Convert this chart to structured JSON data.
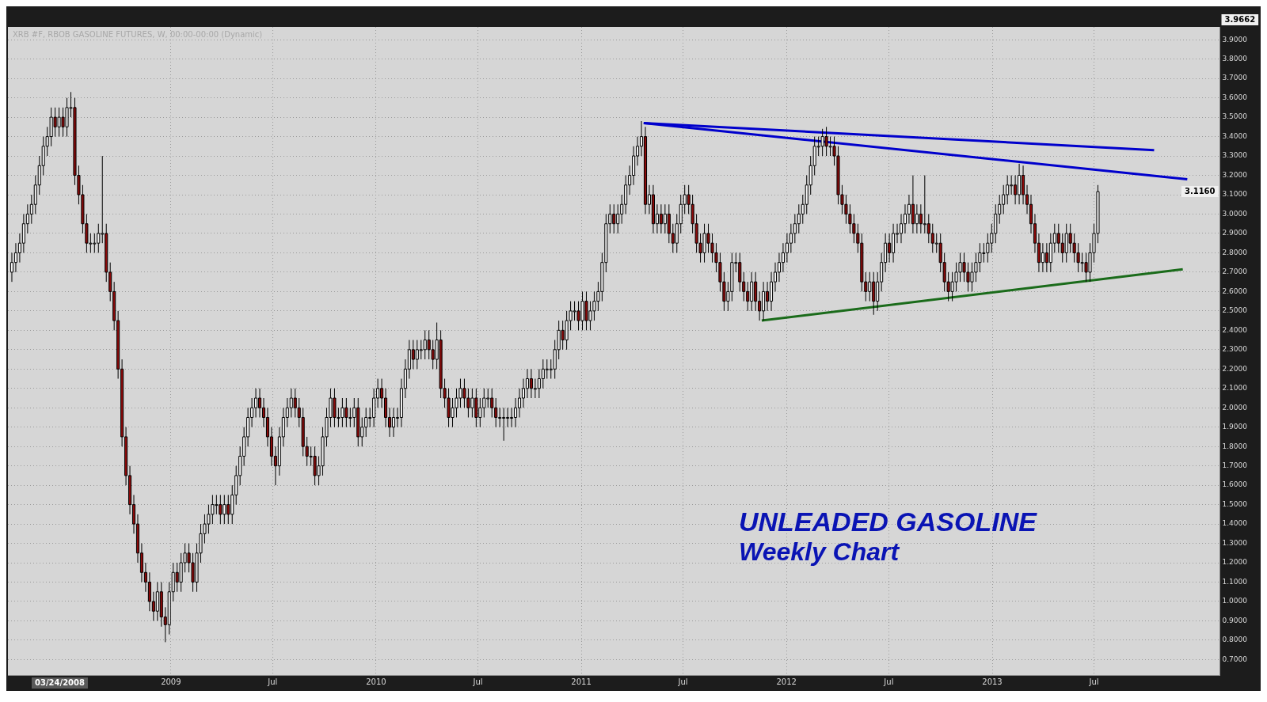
{
  "chart_data": {
    "type": "candlestick",
    "title": "UNLEADED GASOLINE",
    "subtitle": "Weekly Chart",
    "x": [
      "2008-03-24",
      "2008-03-31",
      "2008-04-07",
      "2008-04-14",
      "2008-04-21",
      "2008-04-28",
      "2008-05-05",
      "2008-05-12",
      "2008-05-19",
      "2008-05-26",
      "2008-06-02",
      "2008-06-09",
      "2008-06-16",
      "2008-06-23",
      "2008-06-30",
      "2008-07-07",
      "2008-07-14",
      "2008-07-21",
      "2008-07-28",
      "2008-08-04",
      "2008-08-11",
      "2008-08-18",
      "2008-08-25",
      "2008-09-01",
      "2008-09-08",
      "2008-09-15",
      "2008-09-22",
      "2008-09-29",
      "2008-10-06",
      "2008-10-13",
      "2008-10-20",
      "2008-10-27",
      "2008-11-03",
      "2008-11-10",
      "2008-11-17",
      "2008-11-24",
      "2008-12-01",
      "2008-12-08",
      "2008-12-15",
      "2008-12-22",
      "2008-12-29",
      "2009-01-05",
      "2009-01-12",
      "2009-01-19",
      "2009-01-26",
      "2009-02-02",
      "2009-02-09",
      "2009-02-16",
      "2009-02-23",
      "2009-03-02",
      "2009-03-09",
      "2009-03-16",
      "2009-03-23",
      "2009-03-30",
      "2009-04-06",
      "2009-04-13",
      "2009-04-20",
      "2009-04-27",
      "2009-05-04",
      "2009-05-11",
      "2009-05-18",
      "2009-05-25",
      "2009-06-01",
      "2009-06-08",
      "2009-06-15",
      "2009-06-22",
      "2009-06-29",
      "2009-07-06",
      "2009-07-13",
      "2009-07-20",
      "2009-07-27",
      "2009-08-03",
      "2009-08-10",
      "2009-08-17",
      "2009-08-24",
      "2009-08-31",
      "2009-09-07",
      "2009-09-14",
      "2009-09-21",
      "2009-09-28",
      "2009-10-05",
      "2009-10-12",
      "2009-10-19",
      "2009-10-26",
      "2009-11-02",
      "2009-11-09",
      "2009-11-16",
      "2009-11-23",
      "2009-11-30",
      "2009-12-07",
      "2009-12-14",
      "2009-12-21",
      "2009-12-28",
      "2010-01-04",
      "2010-01-11",
      "2010-01-18",
      "2010-01-25",
      "2010-02-01",
      "2010-02-08",
      "2010-02-15",
      "2010-02-22",
      "2010-03-01",
      "2010-03-08",
      "2010-03-15",
      "2010-03-22",
      "2010-03-29",
      "2010-04-05",
      "2010-04-12",
      "2010-04-19",
      "2010-04-26",
      "2010-05-03",
      "2010-05-10",
      "2010-05-17",
      "2010-05-24",
      "2010-05-31",
      "2010-06-07",
      "2010-06-14",
      "2010-06-21",
      "2010-06-28",
      "2010-07-05",
      "2010-07-12",
      "2010-07-19",
      "2010-07-26",
      "2010-08-02",
      "2010-08-09",
      "2010-08-16",
      "2010-08-23",
      "2010-08-30",
      "2010-09-06",
      "2010-09-13",
      "2010-09-20",
      "2010-09-27",
      "2010-10-04",
      "2010-10-11",
      "2010-10-18",
      "2010-10-25",
      "2010-11-01",
      "2010-11-08",
      "2010-11-15",
      "2010-11-22",
      "2010-11-29",
      "2010-12-06",
      "2010-12-13",
      "2010-12-20",
      "2010-12-27",
      "2011-01-03",
      "2011-01-10",
      "2011-01-17",
      "2011-01-24",
      "2011-01-31",
      "2011-02-07",
      "2011-02-14",
      "2011-02-21",
      "2011-02-28",
      "2011-03-07",
      "2011-03-14",
      "2011-03-21",
      "2011-03-28",
      "2011-04-04",
      "2011-04-11",
      "2011-04-18",
      "2011-04-25",
      "2011-05-02",
      "2011-05-09",
      "2011-05-16",
      "2011-05-23",
      "2011-05-30",
      "2011-06-06",
      "2011-06-13",
      "2011-06-20",
      "2011-06-27",
      "2011-07-04",
      "2011-07-11",
      "2011-07-18",
      "2011-07-25",
      "2011-08-01",
      "2011-08-08",
      "2011-08-15",
      "2011-08-22",
      "2011-08-29",
      "2011-09-05",
      "2011-09-12",
      "2011-09-19",
      "2011-09-26",
      "2011-10-03",
      "2011-10-10",
      "2011-10-17",
      "2011-10-24",
      "2011-10-31",
      "2011-11-07",
      "2011-11-14",
      "2011-11-21",
      "2011-11-28",
      "2011-12-05",
      "2011-12-12",
      "2011-12-19",
      "2011-12-26",
      "2012-01-02",
      "2012-01-09",
      "2012-01-16",
      "2012-01-23",
      "2012-01-30",
      "2012-02-06",
      "2012-02-13",
      "2012-02-20",
      "2012-02-27",
      "2012-03-05",
      "2012-03-12",
      "2012-03-19",
      "2012-03-26",
      "2012-04-02",
      "2012-04-09",
      "2012-04-16",
      "2012-04-23",
      "2012-04-30",
      "2012-05-07",
      "2012-05-14",
      "2012-05-21",
      "2012-05-28",
      "2012-06-04",
      "2012-06-11",
      "2012-06-18",
      "2012-06-25",
      "2012-07-02",
      "2012-07-09",
      "2012-07-16",
      "2012-07-23",
      "2012-07-30",
      "2012-08-06",
      "2012-08-13",
      "2012-08-20",
      "2012-08-27",
      "2012-09-03",
      "2012-09-10",
      "2012-09-17",
      "2012-09-24",
      "2012-10-01",
      "2012-10-08",
      "2012-10-15",
      "2012-10-22",
      "2012-10-29",
      "2012-11-05",
      "2012-11-12",
      "2012-11-19",
      "2012-11-26",
      "2012-12-03",
      "2012-12-10",
      "2012-12-17",
      "2012-12-24",
      "2012-12-31",
      "2013-01-07",
      "2013-01-14",
      "2013-01-21",
      "2013-01-28",
      "2013-02-04",
      "2013-02-11",
      "2013-02-18",
      "2013-02-25",
      "2013-03-04",
      "2013-03-11",
      "2013-03-18",
      "2013-03-25",
      "2013-04-01",
      "2013-04-08",
      "2013-04-15",
      "2013-04-22",
      "2013-04-29",
      "2013-05-06",
      "2013-05-13",
      "2013-05-20",
      "2013-05-27",
      "2013-06-03",
      "2013-06-10",
      "2013-06-17",
      "2013-06-24",
      "2013-07-01",
      "2013-07-08"
    ],
    "ohlc": [
      [
        2.7,
        2.8,
        2.65,
        2.75
      ],
      [
        2.75,
        2.85,
        2.7,
        2.8
      ],
      [
        2.8,
        2.9,
        2.75,
        2.85
      ],
      [
        2.85,
        3.0,
        2.8,
        2.95
      ],
      [
        2.95,
        3.05,
        2.9,
        3.0
      ],
      [
        3.0,
        3.1,
        2.95,
        3.05
      ],
      [
        3.05,
        3.2,
        3.0,
        3.15
      ],
      [
        3.15,
        3.3,
        3.1,
        3.25
      ],
      [
        3.25,
        3.4,
        3.2,
        3.35
      ],
      [
        3.35,
        3.45,
        3.3,
        3.4
      ],
      [
        3.4,
        3.55,
        3.35,
        3.5
      ],
      [
        3.5,
        3.55,
        3.4,
        3.45
      ],
      [
        3.45,
        3.55,
        3.4,
        3.5
      ],
      [
        3.5,
        3.55,
        3.4,
        3.45
      ],
      [
        3.45,
        3.6,
        3.4,
        3.55
      ],
      [
        3.55,
        3.63,
        3.5,
        3.55
      ],
      [
        3.55,
        3.6,
        3.15,
        3.2
      ],
      [
        3.2,
        3.25,
        3.05,
        3.1
      ],
      [
        3.1,
        3.15,
        2.9,
        2.95
      ],
      [
        2.95,
        3.0,
        2.8,
        2.85
      ],
      [
        2.85,
        2.9,
        2.8,
        2.85
      ],
      [
        2.85,
        2.9,
        2.8,
        2.85
      ],
      [
        2.85,
        2.95,
        2.8,
        2.9
      ],
      [
        2.9,
        3.3,
        2.85,
        2.9
      ],
      [
        2.9,
        2.95,
        2.65,
        2.7
      ],
      [
        2.7,
        2.75,
        2.55,
        2.6
      ],
      [
        2.6,
        2.65,
        2.4,
        2.45
      ],
      [
        2.45,
        2.5,
        2.15,
        2.2
      ],
      [
        2.2,
        2.25,
        1.8,
        1.85
      ],
      [
        1.85,
        1.9,
        1.6,
        1.65
      ],
      [
        1.65,
        1.7,
        1.45,
        1.5
      ],
      [
        1.5,
        1.55,
        1.35,
        1.4
      ],
      [
        1.4,
        1.45,
        1.2,
        1.25
      ],
      [
        1.25,
        1.3,
        1.1,
        1.15
      ],
      [
        1.15,
        1.2,
        1.05,
        1.1
      ],
      [
        1.1,
        1.15,
        0.95,
        1.0
      ],
      [
        1.0,
        1.05,
        0.9,
        0.95
      ],
      [
        0.95,
        1.1,
        0.9,
        1.05
      ],
      [
        1.05,
        1.1,
        0.87,
        0.92
      ],
      [
        0.92,
        0.97,
        0.79,
        0.88
      ],
      [
        0.88,
        1.1,
        0.83,
        1.05
      ],
      [
        1.05,
        1.2,
        1.0,
        1.15
      ],
      [
        1.15,
        1.2,
        1.05,
        1.1
      ],
      [
        1.1,
        1.25,
        1.05,
        1.2
      ],
      [
        1.2,
        1.3,
        1.15,
        1.25
      ],
      [
        1.25,
        1.3,
        1.15,
        1.2
      ],
      [
        1.2,
        1.25,
        1.05,
        1.1
      ],
      [
        1.1,
        1.3,
        1.05,
        1.25
      ],
      [
        1.25,
        1.4,
        1.2,
        1.35
      ],
      [
        1.35,
        1.45,
        1.3,
        1.4
      ],
      [
        1.4,
        1.5,
        1.35,
        1.45
      ],
      [
        1.45,
        1.55,
        1.4,
        1.5
      ],
      [
        1.5,
        1.55,
        1.45,
        1.5
      ],
      [
        1.5,
        1.55,
        1.4,
        1.45
      ],
      [
        1.45,
        1.55,
        1.4,
        1.5
      ],
      [
        1.5,
        1.55,
        1.4,
        1.45
      ],
      [
        1.45,
        1.6,
        1.4,
        1.55
      ],
      [
        1.55,
        1.7,
        1.5,
        1.65
      ],
      [
        1.65,
        1.8,
        1.6,
        1.75
      ],
      [
        1.75,
        1.9,
        1.7,
        1.85
      ],
      [
        1.85,
        2.0,
        1.8,
        1.95
      ],
      [
        1.95,
        2.05,
        1.9,
        2.0
      ],
      [
        2.0,
        2.1,
        1.95,
        2.05
      ],
      [
        2.05,
        2.1,
        1.95,
        2.0
      ],
      [
        2.0,
        2.05,
        1.9,
        1.95
      ],
      [
        1.95,
        2.0,
        1.8,
        1.85
      ],
      [
        1.85,
        1.9,
        1.7,
        1.75
      ],
      [
        1.75,
        1.8,
        1.6,
        1.7
      ],
      [
        1.7,
        1.9,
        1.65,
        1.85
      ],
      [
        1.85,
        2.0,
        1.8,
        1.95
      ],
      [
        1.95,
        2.05,
        1.9,
        2.0
      ],
      [
        2.0,
        2.1,
        1.95,
        2.05
      ],
      [
        2.05,
        2.1,
        1.95,
        2.0
      ],
      [
        2.0,
        2.05,
        1.9,
        1.95
      ],
      [
        1.95,
        2.0,
        1.75,
        1.8
      ],
      [
        1.8,
        1.85,
        1.7,
        1.75
      ],
      [
        1.75,
        1.8,
        1.7,
        1.75
      ],
      [
        1.75,
        1.8,
        1.6,
        1.65
      ],
      [
        1.65,
        1.75,
        1.6,
        1.7
      ],
      [
        1.7,
        1.9,
        1.65,
        1.85
      ],
      [
        1.85,
        2.0,
        1.8,
        1.95
      ],
      [
        1.95,
        2.1,
        1.9,
        2.05
      ],
      [
        2.05,
        2.1,
        1.9,
        1.95
      ],
      [
        1.95,
        2.0,
        1.9,
        1.95
      ],
      [
        1.95,
        2.05,
        1.9,
        2.0
      ],
      [
        2.0,
        2.05,
        1.9,
        1.95
      ],
      [
        1.95,
        2.0,
        1.9,
        1.95
      ],
      [
        1.95,
        2.05,
        1.9,
        2.0
      ],
      [
        2.0,
        2.05,
        1.8,
        1.85
      ],
      [
        1.85,
        1.95,
        1.8,
        1.9
      ],
      [
        1.9,
        2.0,
        1.85,
        1.95
      ],
      [
        1.95,
        2.0,
        1.9,
        1.95
      ],
      [
        1.95,
        2.1,
        1.9,
        2.05
      ],
      [
        2.05,
        2.15,
        2.0,
        2.1
      ],
      [
        2.1,
        2.15,
        2.0,
        2.05
      ],
      [
        2.05,
        2.1,
        1.9,
        1.95
      ],
      [
        1.95,
        2.0,
        1.85,
        1.9
      ],
      [
        1.9,
        2.0,
        1.85,
        1.95
      ],
      [
        1.95,
        2.0,
        1.9,
        1.95
      ],
      [
        1.95,
        2.15,
        1.9,
        2.1
      ],
      [
        2.1,
        2.25,
        2.05,
        2.2
      ],
      [
        2.2,
        2.35,
        2.15,
        2.3
      ],
      [
        2.3,
        2.35,
        2.2,
        2.25
      ],
      [
        2.25,
        2.35,
        2.2,
        2.3
      ],
      [
        2.3,
        2.35,
        2.25,
        2.3
      ],
      [
        2.3,
        2.4,
        2.25,
        2.35
      ],
      [
        2.35,
        2.4,
        2.25,
        2.3
      ],
      [
        2.3,
        2.35,
        2.2,
        2.25
      ],
      [
        2.25,
        2.44,
        2.2,
        2.35
      ],
      [
        2.35,
        2.4,
        2.05,
        2.1
      ],
      [
        2.1,
        2.15,
        2.0,
        2.05
      ],
      [
        2.05,
        2.1,
        1.9,
        1.95
      ],
      [
        1.95,
        2.05,
        1.9,
        2.0
      ],
      [
        2.0,
        2.1,
        1.95,
        2.05
      ],
      [
        2.05,
        2.15,
        2.0,
        2.1
      ],
      [
        2.1,
        2.15,
        2.0,
        2.05
      ],
      [
        2.05,
        2.1,
        1.95,
        2.0
      ],
      [
        2.0,
        2.1,
        1.95,
        2.05
      ],
      [
        2.05,
        2.1,
        1.9,
        1.95
      ],
      [
        1.95,
        2.05,
        1.9,
        2.0
      ],
      [
        2.0,
        2.1,
        1.95,
        2.05
      ],
      [
        2.05,
        2.1,
        2.0,
        2.05
      ],
      [
        2.05,
        2.1,
        1.95,
        2.0
      ],
      [
        2.0,
        2.05,
        1.9,
        1.95
      ],
      [
        1.95,
        2.0,
        1.9,
        1.95
      ],
      [
        1.95,
        2.0,
        1.83,
        1.95
      ],
      [
        1.95,
        2.0,
        1.9,
        1.95
      ],
      [
        1.95,
        2.0,
        1.9,
        1.95
      ],
      [
        1.95,
        2.05,
        1.9,
        2.0
      ],
      [
        2.0,
        2.1,
        1.95,
        2.05
      ],
      [
        2.05,
        2.15,
        2.0,
        2.1
      ],
      [
        2.1,
        2.2,
        2.05,
        2.15
      ],
      [
        2.15,
        2.2,
        2.05,
        2.1
      ],
      [
        2.1,
        2.15,
        2.05,
        2.1
      ],
      [
        2.1,
        2.2,
        2.05,
        2.15
      ],
      [
        2.15,
        2.25,
        2.1,
        2.2
      ],
      [
        2.2,
        2.25,
        2.15,
        2.2
      ],
      [
        2.2,
        2.25,
        2.15,
        2.2
      ],
      [
        2.2,
        2.35,
        2.15,
        2.3
      ],
      [
        2.3,
        2.45,
        2.25,
        2.4
      ],
      [
        2.4,
        2.45,
        2.3,
        2.35
      ],
      [
        2.35,
        2.5,
        2.3,
        2.45
      ],
      [
        2.45,
        2.55,
        2.4,
        2.5
      ],
      [
        2.5,
        2.55,
        2.45,
        2.5
      ],
      [
        2.5,
        2.55,
        2.4,
        2.45
      ],
      [
        2.45,
        2.6,
        2.4,
        2.55
      ],
      [
        2.55,
        2.6,
        2.4,
        2.45
      ],
      [
        2.45,
        2.55,
        2.4,
        2.5
      ],
      [
        2.5,
        2.6,
        2.45,
        2.55
      ],
      [
        2.55,
        2.65,
        2.5,
        2.6
      ],
      [
        2.6,
        2.8,
        2.55,
        2.75
      ],
      [
        2.75,
        3.0,
        2.7,
        2.95
      ],
      [
        2.95,
        3.05,
        2.9,
        3.0
      ],
      [
        3.0,
        3.05,
        2.9,
        2.95
      ],
      [
        2.95,
        3.05,
        2.9,
        3.0
      ],
      [
        3.0,
        3.1,
        2.95,
        3.05
      ],
      [
        3.05,
        3.2,
        3.0,
        3.15
      ],
      [
        3.15,
        3.25,
        3.1,
        3.2
      ],
      [
        3.2,
        3.35,
        3.15,
        3.3
      ],
      [
        3.3,
        3.4,
        3.25,
        3.35
      ],
      [
        3.35,
        3.48,
        3.3,
        3.4
      ],
      [
        3.4,
        3.45,
        3.0,
        3.05
      ],
      [
        3.05,
        3.15,
        3.0,
        3.1
      ],
      [
        3.1,
        3.15,
        2.9,
        2.95
      ],
      [
        2.95,
        3.05,
        2.9,
        3.0
      ],
      [
        3.0,
        3.05,
        2.9,
        2.95
      ],
      [
        2.95,
        3.05,
        2.9,
        3.0
      ],
      [
        3.0,
        3.05,
        2.85,
        2.9
      ],
      [
        2.9,
        2.95,
        2.8,
        2.85
      ],
      [
        2.85,
        3.0,
        2.8,
        2.95
      ],
      [
        2.95,
        3.1,
        2.9,
        3.05
      ],
      [
        3.05,
        3.15,
        3.0,
        3.1
      ],
      [
        3.1,
        3.15,
        3.0,
        3.05
      ],
      [
        3.05,
        3.1,
        2.9,
        2.95
      ],
      [
        2.95,
        3.0,
        2.8,
        2.85
      ],
      [
        2.85,
        2.9,
        2.75,
        2.8
      ],
      [
        2.8,
        2.95,
        2.75,
        2.9
      ],
      [
        2.9,
        2.95,
        2.8,
        2.85
      ],
      [
        2.85,
        2.9,
        2.75,
        2.8
      ],
      [
        2.8,
        2.85,
        2.7,
        2.75
      ],
      [
        2.75,
        2.8,
        2.6,
        2.65
      ],
      [
        2.65,
        2.7,
        2.5,
        2.55
      ],
      [
        2.55,
        2.65,
        2.5,
        2.6
      ],
      [
        2.6,
        2.8,
        2.55,
        2.75
      ],
      [
        2.75,
        2.8,
        2.7,
        2.75
      ],
      [
        2.75,
        2.8,
        2.6,
        2.65
      ],
      [
        2.65,
        2.7,
        2.55,
        2.6
      ],
      [
        2.6,
        2.65,
        2.5,
        2.55
      ],
      [
        2.55,
        2.7,
        2.5,
        2.65
      ],
      [
        2.65,
        2.7,
        2.5,
        2.55
      ],
      [
        2.55,
        2.6,
        2.45,
        2.5
      ],
      [
        2.5,
        2.65,
        2.45,
        2.6
      ],
      [
        2.6,
        2.65,
        2.5,
        2.55
      ],
      [
        2.55,
        2.7,
        2.5,
        2.65
      ],
      [
        2.65,
        2.75,
        2.6,
        2.7
      ],
      [
        2.7,
        2.8,
        2.65,
        2.75
      ],
      [
        2.75,
        2.85,
        2.7,
        2.8
      ],
      [
        2.8,
        2.9,
        2.75,
        2.85
      ],
      [
        2.85,
        2.95,
        2.8,
        2.9
      ],
      [
        2.9,
        3.0,
        2.85,
        2.95
      ],
      [
        2.95,
        3.05,
        2.9,
        3.0
      ],
      [
        3.0,
        3.1,
        2.95,
        3.05
      ],
      [
        3.05,
        3.2,
        3.0,
        3.15
      ],
      [
        3.15,
        3.3,
        3.1,
        3.25
      ],
      [
        3.25,
        3.4,
        3.2,
        3.35
      ],
      [
        3.35,
        3.4,
        3.3,
        3.35
      ],
      [
        3.35,
        3.44,
        3.3,
        3.4
      ],
      [
        3.4,
        3.45,
        3.3,
        3.35
      ],
      [
        3.35,
        3.4,
        3.3,
        3.35
      ],
      [
        3.35,
        3.4,
        3.25,
        3.3
      ],
      [
        3.3,
        3.35,
        3.05,
        3.1
      ],
      [
        3.1,
        3.15,
        3.0,
        3.05
      ],
      [
        3.05,
        3.1,
        2.95,
        3.0
      ],
      [
        3.0,
        3.05,
        2.9,
        2.95
      ],
      [
        2.95,
        3.0,
        2.85,
        2.9
      ],
      [
        2.9,
        2.95,
        2.8,
        2.85
      ],
      [
        2.85,
        2.9,
        2.6,
        2.65
      ],
      [
        2.65,
        2.7,
        2.55,
        2.6
      ],
      [
        2.6,
        2.7,
        2.55,
        2.65
      ],
      [
        2.65,
        2.7,
        2.48,
        2.55
      ],
      [
        2.55,
        2.7,
        2.5,
        2.65
      ],
      [
        2.65,
        2.8,
        2.6,
        2.75
      ],
      [
        2.75,
        2.9,
        2.7,
        2.85
      ],
      [
        2.85,
        2.9,
        2.75,
        2.8
      ],
      [
        2.8,
        2.95,
        2.75,
        2.9
      ],
      [
        2.9,
        2.95,
        2.85,
        2.9
      ],
      [
        2.9,
        3.0,
        2.85,
        2.95
      ],
      [
        2.95,
        3.05,
        2.9,
        3.0
      ],
      [
        3.0,
        3.1,
        2.95,
        3.05
      ],
      [
        3.05,
        3.2,
        2.9,
        2.95
      ],
      [
        2.95,
        3.05,
        2.9,
        3.0
      ],
      [
        3.0,
        3.05,
        2.9,
        2.95
      ],
      [
        2.95,
        3.2,
        2.9,
        2.95
      ],
      [
        2.95,
        3.0,
        2.85,
        2.9
      ],
      [
        2.9,
        2.95,
        2.8,
        2.85
      ],
      [
        2.85,
        2.9,
        2.8,
        2.85
      ],
      [
        2.85,
        2.9,
        2.7,
        2.75
      ],
      [
        2.75,
        2.8,
        2.6,
        2.65
      ],
      [
        2.65,
        2.7,
        2.55,
        2.6
      ],
      [
        2.6,
        2.7,
        2.55,
        2.65
      ],
      [
        2.65,
        2.75,
        2.6,
        2.7
      ],
      [
        2.7,
        2.8,
        2.65,
        2.75
      ],
      [
        2.75,
        2.8,
        2.65,
        2.7
      ],
      [
        2.7,
        2.75,
        2.6,
        2.65
      ],
      [
        2.65,
        2.75,
        2.6,
        2.7
      ],
      [
        2.7,
        2.8,
        2.65,
        2.75
      ],
      [
        2.75,
        2.85,
        2.7,
        2.8
      ],
      [
        2.8,
        2.85,
        2.75,
        2.8
      ],
      [
        2.8,
        2.9,
        2.75,
        2.85
      ],
      [
        2.85,
        2.95,
        2.8,
        2.9
      ],
      [
        2.9,
        3.05,
        2.85,
        3.0
      ],
      [
        3.0,
        3.1,
        2.95,
        3.05
      ],
      [
        3.05,
        3.15,
        3.0,
        3.1
      ],
      [
        3.1,
        3.2,
        3.05,
        3.15
      ],
      [
        3.15,
        3.2,
        3.1,
        3.15
      ],
      [
        3.15,
        3.2,
        3.05,
        3.1
      ],
      [
        3.1,
        3.26,
        3.05,
        3.2
      ],
      [
        3.2,
        3.25,
        3.05,
        3.1
      ],
      [
        3.1,
        3.15,
        3.0,
        3.05
      ],
      [
        3.05,
        3.1,
        2.9,
        2.95
      ],
      [
        2.95,
        3.0,
        2.8,
        2.85
      ],
      [
        2.85,
        2.9,
        2.7,
        2.75
      ],
      [
        2.75,
        2.85,
        2.7,
        2.8
      ],
      [
        2.8,
        2.85,
        2.7,
        2.75
      ],
      [
        2.75,
        2.9,
        2.7,
        2.85
      ],
      [
        2.85,
        2.95,
        2.8,
        2.9
      ],
      [
        2.9,
        2.95,
        2.8,
        2.85
      ],
      [
        2.85,
        2.9,
        2.75,
        2.8
      ],
      [
        2.8,
        2.95,
        2.75,
        2.9
      ],
      [
        2.9,
        2.95,
        2.8,
        2.85
      ],
      [
        2.85,
        2.9,
        2.75,
        2.8
      ],
      [
        2.8,
        2.85,
        2.7,
        2.75
      ],
      [
        2.75,
        2.8,
        2.7,
        2.75
      ],
      [
        2.75,
        2.8,
        2.65,
        2.7
      ],
      [
        2.7,
        2.85,
        2.65,
        2.8
      ],
      [
        2.8,
        2.95,
        2.75,
        2.9
      ],
      [
        2.9,
        3.15,
        2.85,
        3.116
      ]
    ],
    "series": [
      {
        "type": "line",
        "color": "#0000cc",
        "x": [
          "2011-04-22",
          "2013-10-16"
        ],
        "values": [
          3.47,
          3.33
        ]
      },
      {
        "type": "line",
        "color": "#0000cc",
        "x": [
          "2011-04-22",
          "2013-12-14"
        ],
        "values": [
          3.47,
          3.18
        ]
      },
      {
        "type": "line",
        "color": "#1a6b1a",
        "x": [
          "2011-11-18",
          "2013-12-06"
        ],
        "values": [
          2.45,
          2.715
        ]
      }
    ],
    "xlim": [
      "2008-03-17",
      "2014-02-10"
    ],
    "xticks": [
      {
        "value": "2009-01-01",
        "label": "2009"
      },
      {
        "value": "2009-07-01",
        "label": "Jul"
      },
      {
        "value": "2010-01-01",
        "label": "2010"
      },
      {
        "value": "2010-07-01",
        "label": "Jul"
      },
      {
        "value": "2011-01-01",
        "label": "2011"
      },
      {
        "value": "2011-07-01",
        "label": "Jul"
      },
      {
        "value": "2012-01-01",
        "label": "2012"
      },
      {
        "value": "2012-07-01",
        "label": "Jul"
      },
      {
        "value": "2013-01-01",
        "label": "2013"
      },
      {
        "value": "2013-07-01",
        "label": "Jul"
      }
    ],
    "ylim": [
      0.62,
      3.9662
    ],
    "yticks": [
      {
        "value": 0.7,
        "label": "0.7000"
      },
      {
        "value": 0.8,
        "label": "0.8000"
      },
      {
        "value": 0.9,
        "label": "0.9000"
      },
      {
        "value": 1.0,
        "label": "1.0000"
      },
      {
        "value": 1.1,
        "label": "1.1000"
      },
      {
        "value": 1.2,
        "label": "1.2000"
      },
      {
        "value": 1.3,
        "label": "1.3000"
      },
      {
        "value": 1.4,
        "label": "1.4000"
      },
      {
        "value": 1.5,
        "label": "1.5000"
      },
      {
        "value": 1.6,
        "label": "1.6000"
      },
      {
        "value": 1.7,
        "label": "1.7000"
      },
      {
        "value": 1.8,
        "label": "1.8000"
      },
      {
        "value": 1.9,
        "label": "1.9000"
      },
      {
        "value": 2.0,
        "label": "2.0000"
      },
      {
        "value": 2.1,
        "label": "2.1000"
      },
      {
        "value": 2.2,
        "label": "2.2000"
      },
      {
        "value": 2.3,
        "label": "2.3000"
      },
      {
        "value": 2.4,
        "label": "2.4000"
      },
      {
        "value": 2.5,
        "label": "2.5000"
      },
      {
        "value": 2.6,
        "label": "2.6000"
      },
      {
        "value": 2.7,
        "label": "2.7000"
      },
      {
        "value": 2.8,
        "label": "2.8000"
      },
      {
        "value": 2.9,
        "label": "2.9000"
      },
      {
        "value": 3.0,
        "label": "3.0000"
      },
      {
        "value": 3.1,
        "label": "3.1000"
      },
      {
        "value": 3.2,
        "label": "3.2000"
      },
      {
        "value": 3.3,
        "label": "3.3000"
      },
      {
        "value": 3.4,
        "label": "3.4000"
      },
      {
        "value": 3.5,
        "label": "3.5000"
      },
      {
        "value": 3.6,
        "label": "3.6000"
      },
      {
        "value": 3.7,
        "label": "3.7000"
      },
      {
        "value": 3.8,
        "label": "3.8000"
      },
      {
        "value": 3.9,
        "label": "3.9000"
      }
    ],
    "grid": true,
    "annotations": [
      "XRB #F, RBOB GASOLINE FUTURES, W, 00:00-00:00 (Dynamic)",
      "3.9662",
      "3.1160",
      "03/24/2008"
    ]
  }
}
